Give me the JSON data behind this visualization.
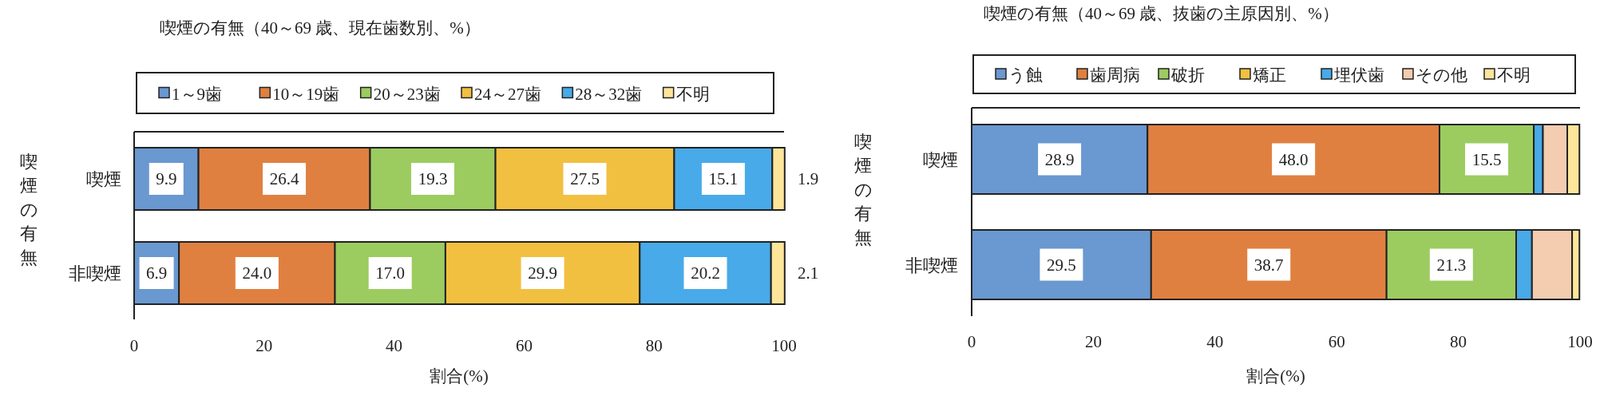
{
  "chart_data": [
    {
      "type": "bar",
      "orientation": "horizontal",
      "stacked": true,
      "title": "喫煙の有無（40～69 歳、現在歯数別、%）",
      "xlabel": "割合(%)",
      "ylabel": "喫煙の有無",
      "categories": [
        "喫煙",
        "非喫煙"
      ],
      "xlim": [
        0,
        100
      ],
      "xticks": [
        0,
        20,
        40,
        60,
        80,
        100
      ],
      "legend": "top",
      "grid": false,
      "series": [
        {
          "name": "1～9歯",
          "color": "#6a98d0",
          "values": [
            9.9,
            6.9
          ],
          "value_labels": [
            "9.9",
            "6.9"
          ]
        },
        {
          "name": "10～19歯",
          "color": "#e08040",
          "values": [
            26.4,
            24.0
          ],
          "value_labels": [
            "26.4",
            "24.0"
          ]
        },
        {
          "name": "20～23歯",
          "color": "#9ccc60",
          "values": [
            19.3,
            17.0
          ],
          "value_labels": [
            "19.3",
            "17.0"
          ]
        },
        {
          "name": "24～27歯",
          "color": "#f2c040",
          "values": [
            27.5,
            29.9
          ],
          "value_labels": [
            "27.5",
            "29.9"
          ]
        },
        {
          "name": "28～32歯",
          "color": "#48aae8",
          "values": [
            15.1,
            20.2
          ],
          "value_labels": [
            "15.1",
            "20.2"
          ]
        },
        {
          "name": "不明",
          "color": "#fde59a",
          "values": [
            1.9,
            2.1
          ],
          "value_labels": [
            "1.9",
            "2.1"
          ]
        }
      ]
    },
    {
      "type": "bar",
      "orientation": "horizontal",
      "stacked": true,
      "title": "喫煙の有無（40～69 歳、抜歯の主原因別、%）",
      "xlabel": "割合(%)",
      "ylabel": "喫煙の有無",
      "categories": [
        "喫煙",
        "非喫煙"
      ],
      "xlim": [
        0,
        100
      ],
      "xticks": [
        0,
        20,
        40,
        60,
        80,
        100
      ],
      "legend": "top",
      "grid": false,
      "series": [
        {
          "name": "う蝕",
          "color": "#6a98d0",
          "values": [
            28.9,
            29.5
          ],
          "value_labels": [
            "28.9",
            "29.5"
          ]
        },
        {
          "name": "歯周病",
          "color": "#e08040",
          "values": [
            48.0,
            38.7
          ],
          "value_labels": [
            "48.0",
            "38.7"
          ]
        },
        {
          "name": "破折",
          "color": "#9ccc60",
          "values": [
            15.5,
            21.3
          ],
          "value_labels": [
            "15.5",
            "21.3"
          ]
        },
        {
          "name": "矯正",
          "color": "#f2c040",
          "values": [
            0,
            0
          ]
        },
        {
          "name": "埋伏歯",
          "color": "#48aae8",
          "values": [
            1.5,
            2.6
          ]
        },
        {
          "name": "その他",
          "color": "#f4ccb0",
          "values": [
            4.0,
            6.6
          ]
        },
        {
          "name": "不明",
          "color": "#fde59a",
          "values": [
            2.0,
            1.2
          ]
        }
      ]
    }
  ]
}
